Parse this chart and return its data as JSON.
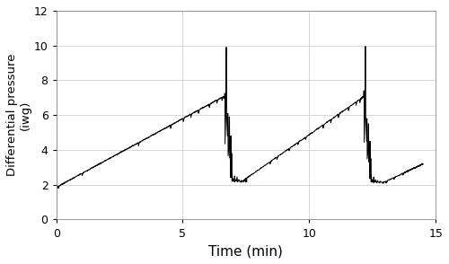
{
  "xlabel": "Time (min)",
  "ylabel": "Differential pressure\n(iwg)",
  "xlim": [
    0,
    15
  ],
  "ylim": [
    0,
    12
  ],
  "xticks": [
    0,
    5,
    10,
    15
  ],
  "yticks": [
    0,
    2,
    4,
    6,
    8,
    10,
    12
  ],
  "line_color": "#000000",
  "line_width": 0.7,
  "background_color": "#ffffff",
  "grid_color": "#c8c8c8"
}
